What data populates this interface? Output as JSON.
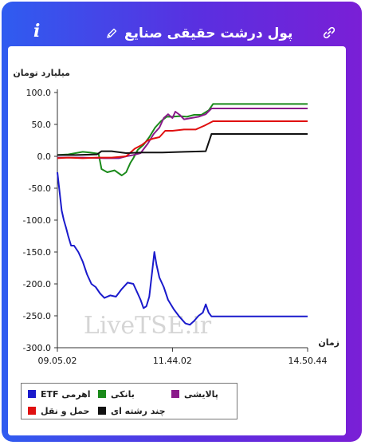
{
  "header": {
    "title": "پول درشت حقیقی صنایع",
    "info_icon": "info-icon",
    "edit_icon": "pencil-icon",
    "link_icon": "link-icon"
  },
  "watermark": "LiveTSE.ir",
  "colors": {
    "frame_start": "#2f5cf0",
    "frame_end": "#7a1fd6"
  },
  "chart_data": {
    "type": "line",
    "ylabel": "میلیارد تومان",
    "xlabel": "زمان",
    "ylim": [
      -300,
      100
    ],
    "yticks": [
      100,
      50,
      0,
      -50,
      -100,
      -150,
      -200,
      -250,
      -300
    ],
    "ytick_labels": [
      "100.0",
      "50.0",
      "0.0",
      "-50.0",
      "-100.0",
      "-150.0",
      "-200.0",
      "-250.0",
      "-300.0"
    ],
    "xlim": [
      "09.05.02",
      "14.50.44"
    ],
    "xtick_labels": [
      "09.05.02",
      "11.44.02",
      "14.50.44"
    ],
    "grid": false,
    "legend_position": "bottom-left",
    "series": [
      {
        "name": "ETF اهرمی",
        "color": "#1a1acc",
        "points": [
          [
            "09.05.02",
            -25
          ],
          [
            "09.07.00",
            -45
          ],
          [
            "09.09.00",
            -65
          ],
          [
            "09.11.00",
            -85
          ],
          [
            "09.14.00",
            -100
          ],
          [
            "09.17.00",
            -112
          ],
          [
            "09.20.00",
            -125
          ],
          [
            "09.24.00",
            -140
          ],
          [
            "09.28.00",
            -140
          ],
          [
            "09.34.00",
            -150
          ],
          [
            "09.40.00",
            -165
          ],
          [
            "09.46.00",
            -185
          ],
          [
            "09.52.00",
            -200
          ],
          [
            "09.58.00",
            -205
          ],
          [
            "10.04.00",
            -215
          ],
          [
            "10.10.00",
            -222
          ],
          [
            "10.18.00",
            -218
          ],
          [
            "10.26.00",
            -220
          ],
          [
            "10.34.00",
            -208
          ],
          [
            "10.42.00",
            -198
          ],
          [
            "10.50.00",
            -200
          ],
          [
            "10.56.00",
            -215
          ],
          [
            "11.00.00",
            -225
          ],
          [
            "11.04.00",
            -238
          ],
          [
            "11.08.00",
            -235
          ],
          [
            "11.12.00",
            -220
          ],
          [
            "11.16.00",
            -180
          ],
          [
            "11.19.00",
            -150
          ],
          [
            "11.22.00",
            -170
          ],
          [
            "11.26.00",
            -190
          ],
          [
            "11.32.00",
            -205
          ],
          [
            "11.38.00",
            -225
          ],
          [
            "11.46.00",
            -240
          ],
          [
            "11.54.00",
            -252
          ],
          [
            "12.02.00",
            -262
          ],
          [
            "12.08.00",
            -264
          ],
          [
            "12.14.00",
            -258
          ],
          [
            "12.20.00",
            -250
          ],
          [
            "12.26.00",
            -245
          ],
          [
            "12.30.00",
            -232
          ],
          [
            "12.34.00",
            -245
          ],
          [
            "12.38.00",
            -251
          ],
          [
            "14.50.44",
            -251
          ]
        ]
      },
      {
        "name": "بانکی",
        "color": "#1a8a1a",
        "points": [
          [
            "09.05.02",
            2
          ],
          [
            "09.20.00",
            3
          ],
          [
            "09.40.00",
            7
          ],
          [
            "09.50.00",
            6
          ],
          [
            "10.02.00",
            4
          ],
          [
            "10.06.00",
            -20
          ],
          [
            "10.14.00",
            -25
          ],
          [
            "10.24.00",
            -22
          ],
          [
            "10.34.00",
            -30
          ],
          [
            "10.40.00",
            -25
          ],
          [
            "10.46.00",
            -10
          ],
          [
            "10.50.00",
            -3
          ],
          [
            "10.56.00",
            10
          ],
          [
            "11.04.00",
            18
          ],
          [
            "11.12.00",
            30
          ],
          [
            "11.20.00",
            45
          ],
          [
            "11.28.00",
            55
          ],
          [
            "11.36.00",
            62
          ],
          [
            "11.44.00",
            62
          ],
          [
            "11.54.00",
            63
          ],
          [
            "12.04.00",
            62
          ],
          [
            "12.14.00",
            65
          ],
          [
            "12.24.00",
            65
          ],
          [
            "12.34.00",
            72
          ],
          [
            "12.40.00",
            82
          ],
          [
            "14.50.44",
            82
          ]
        ]
      },
      {
        "name": "پالایشی",
        "color": "#8a1a8a",
        "points": [
          [
            "09.05.02",
            -2
          ],
          [
            "09.40.00",
            -2
          ],
          [
            "10.10.00",
            -3
          ],
          [
            "10.30.00",
            -3
          ],
          [
            "10.40.00",
            0
          ],
          [
            "10.50.00",
            2
          ],
          [
            "11.00.00",
            5
          ],
          [
            "11.10.00",
            20
          ],
          [
            "11.18.00",
            35
          ],
          [
            "11.26.00",
            45
          ],
          [
            "11.32.00",
            60
          ],
          [
            "11.38.00",
            66
          ],
          [
            "11.44.00",
            60
          ],
          [
            "11.48.00",
            70
          ],
          [
            "11.54.00",
            65
          ],
          [
            "12.00.00",
            58
          ],
          [
            "12.10.00",
            60
          ],
          [
            "12.20.00",
            62
          ],
          [
            "12.30.00",
            66
          ],
          [
            "12.38.00",
            75
          ],
          [
            "14.50.44",
            75
          ]
        ]
      },
      {
        "name": "حمل و نقل",
        "color": "#e01010",
        "points": [
          [
            "09.05.02",
            -3
          ],
          [
            "09.20.00",
            -2
          ],
          [
            "09.40.00",
            -3
          ],
          [
            "10.00.00",
            -2
          ],
          [
            "10.20.00",
            -2
          ],
          [
            "10.40.00",
            0
          ],
          [
            "10.52.00",
            12
          ],
          [
            "11.02.00",
            18
          ],
          [
            "11.10.00",
            25
          ],
          [
            "11.18.00",
            28
          ],
          [
            "11.26.00",
            30
          ],
          [
            "11.34.00",
            40
          ],
          [
            "11.44.00",
            40
          ],
          [
            "12.00.00",
            42
          ],
          [
            "12.16.00",
            42
          ],
          [
            "12.28.00",
            48
          ],
          [
            "12.40.00",
            55
          ],
          [
            "14.50.44",
            55
          ]
        ]
      },
      {
        "name": "چند رشته ای",
        "color": "#111111",
        "points": [
          [
            "09.05.02",
            2
          ],
          [
            "09.30.00",
            2
          ],
          [
            "10.00.00",
            3
          ],
          [
            "10.06.00",
            8
          ],
          [
            "10.20.00",
            8
          ],
          [
            "10.40.00",
            5
          ],
          [
            "11.00.00",
            6
          ],
          [
            "11.30.00",
            6
          ],
          [
            "12.00.00",
            7
          ],
          [
            "12.30.00",
            8
          ],
          [
            "12.38.00",
            35
          ],
          [
            "14.50.44",
            35
          ]
        ]
      }
    ]
  }
}
